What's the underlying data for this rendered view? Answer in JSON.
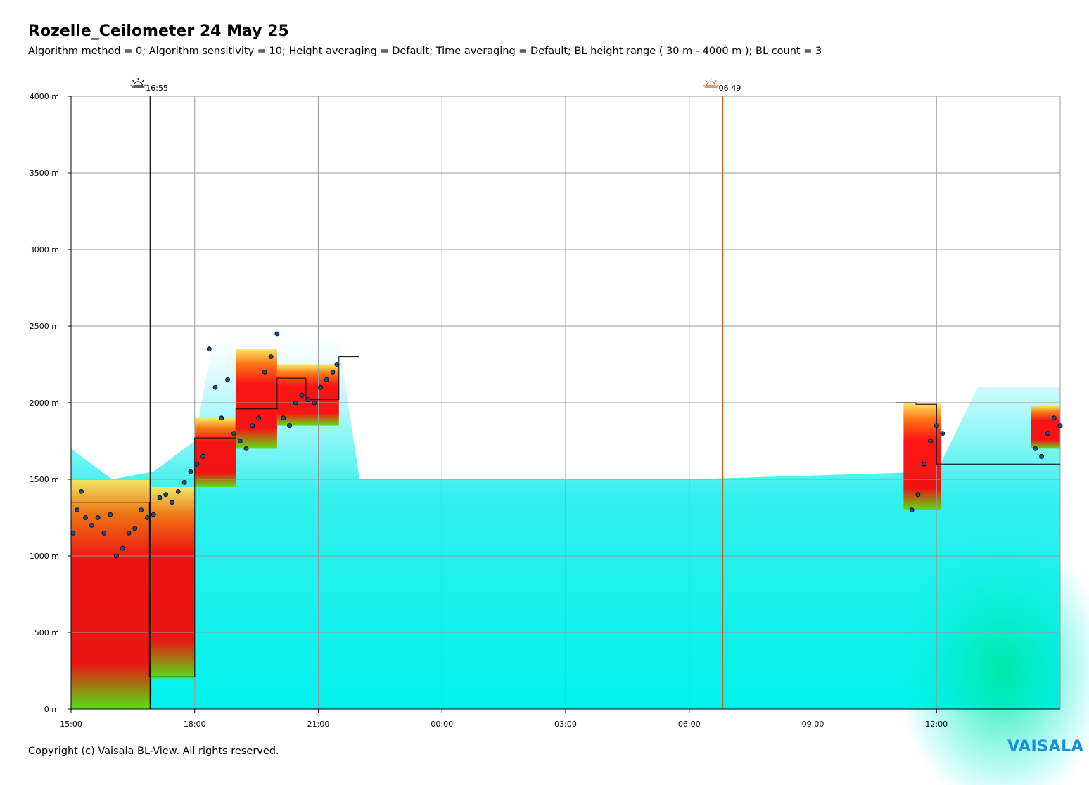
{
  "header": {
    "title": "Rozelle_Ceilometer 24 May 25",
    "subtitle": "Algorithm method = 0; Algorithm sensitivity = 10; Height averaging = Default; Time averaging = Default; BL height range ( 30 m - 4000 m ); BL count = 3"
  },
  "footer": {
    "copyright": "Copyright (c) Vaisala BL-View. All rights reserved.",
    "brand": "VAISALA"
  },
  "chart_data": {
    "type": "heatmap",
    "title": "Rozelle_Ceilometer 24 May 25",
    "xlabel": "",
    "ylabel": "",
    "x_ticks": [
      "15:00",
      "18:00",
      "21:00",
      "00:00",
      "03:00",
      "06:00",
      "09:00",
      "12:00"
    ],
    "x_range_hours": [
      15,
      39
    ],
    "y_ticks": [
      "0 m",
      "500 m",
      "1000 m",
      "1500 m",
      "2000 m",
      "2500 m",
      "3000 m",
      "3500 m",
      "4000 m"
    ],
    "ylim": [
      0,
      4000
    ],
    "grid": true,
    "markers": [
      {
        "label": "16:55",
        "kind": "sunset",
        "time_hours": 16.917,
        "color": "#000000"
      },
      {
        "label": "06:49",
        "kind": "sunrise",
        "time_hours": 30.817,
        "color": "#c8641e"
      }
    ],
    "colors": {
      "backscatter_low": "#00ffff",
      "backscatter_mid": "#00e6a0",
      "backscatter_high": "#ff0000",
      "bl_point": "#1a4f8a",
      "sunrise": "#c8641e"
    },
    "backscatter_region_tops": [
      {
        "t": 15.0,
        "h": 1700
      },
      {
        "t": 16.0,
        "h": 1500
      },
      {
        "t": 17.0,
        "h": 1550
      },
      {
        "t": 18.0,
        "h": 1750
      },
      {
        "t": 18.5,
        "h": 2500
      },
      {
        "t": 19.5,
        "h": 2550
      },
      {
        "t": 20.5,
        "h": 2450
      },
      {
        "t": 21.5,
        "h": 2400
      },
      {
        "t": 22.0,
        "h": 1500
      },
      {
        "t": 30.0,
        "h": 1500
      },
      {
        "t": 36.0,
        "h": 1550
      },
      {
        "t": 37.0,
        "h": 2100
      },
      {
        "t": 39.0,
        "h": 2100
      }
    ],
    "bl_height_steps": [
      {
        "t0": 15.0,
        "t1": 16.9,
        "h": 1350
      },
      {
        "t0": 16.9,
        "t1": 18.0,
        "h": 210
      },
      {
        "t0": 18.0,
        "t1": 19.0,
        "h": 1770
      },
      {
        "t0": 19.0,
        "t1": 20.0,
        "h": 1960
      },
      {
        "t0": 20.0,
        "t1": 20.7,
        "h": 2160
      },
      {
        "t0": 20.7,
        "t1": 21.5,
        "h": 2020
      },
      {
        "t0": 21.5,
        "t1": 22.0,
        "h": 2300
      },
      {
        "t0": 35.0,
        "t1": 35.5,
        "h": 2000
      },
      {
        "t0": 35.5,
        "t1": 36.0,
        "h": 1990
      },
      {
        "t0": 36.0,
        "t1": 39.0,
        "h": 1600
      }
    ],
    "bl_points": [
      {
        "t": 15.05,
        "h": 1150
      },
      {
        "t": 15.15,
        "h": 1300
      },
      {
        "t": 15.25,
        "h": 1420
      },
      {
        "t": 15.35,
        "h": 1250
      },
      {
        "t": 15.5,
        "h": 1200
      },
      {
        "t": 15.65,
        "h": 1250
      },
      {
        "t": 15.8,
        "h": 1150
      },
      {
        "t": 15.95,
        "h": 1270
      },
      {
        "t": 16.1,
        "h": 1000
      },
      {
        "t": 16.25,
        "h": 1050
      },
      {
        "t": 16.4,
        "h": 1150
      },
      {
        "t": 16.55,
        "h": 1180
      },
      {
        "t": 16.7,
        "h": 1300
      },
      {
        "t": 16.85,
        "h": 1250
      },
      {
        "t": 17.0,
        "h": 1270
      },
      {
        "t": 17.15,
        "h": 1380
      },
      {
        "t": 17.3,
        "h": 1400
      },
      {
        "t": 17.45,
        "h": 1350
      },
      {
        "t": 17.6,
        "h": 1420
      },
      {
        "t": 17.75,
        "h": 1480
      },
      {
        "t": 17.9,
        "h": 1550
      },
      {
        "t": 18.05,
        "h": 1600
      },
      {
        "t": 18.2,
        "h": 1650
      },
      {
        "t": 18.35,
        "h": 2350
      },
      {
        "t": 18.5,
        "h": 2100
      },
      {
        "t": 18.65,
        "h": 1900
      },
      {
        "t": 18.8,
        "h": 2150
      },
      {
        "t": 18.95,
        "h": 1800
      },
      {
        "t": 19.1,
        "h": 1750
      },
      {
        "t": 19.25,
        "h": 1700
      },
      {
        "t": 19.4,
        "h": 1850
      },
      {
        "t": 19.55,
        "h": 1900
      },
      {
        "t": 19.7,
        "h": 2200
      },
      {
        "t": 19.85,
        "h": 2300
      },
      {
        "t": 20.0,
        "h": 2450
      },
      {
        "t": 20.15,
        "h": 1900
      },
      {
        "t": 20.3,
        "h": 1850
      },
      {
        "t": 20.45,
        "h": 2000
      },
      {
        "t": 20.6,
        "h": 2050
      },
      {
        "t": 20.75,
        "h": 2020
      },
      {
        "t": 20.9,
        "h": 2000
      },
      {
        "t": 21.05,
        "h": 2100
      },
      {
        "t": 21.2,
        "h": 2150
      },
      {
        "t": 21.35,
        "h": 2200
      },
      {
        "t": 21.45,
        "h": 2250
      },
      {
        "t": 35.4,
        "h": 1300
      },
      {
        "t": 35.55,
        "h": 1400
      },
      {
        "t": 35.7,
        "h": 1600
      },
      {
        "t": 35.85,
        "h": 1750
      },
      {
        "t": 36.0,
        "h": 1850
      },
      {
        "t": 36.15,
        "h": 1800
      },
      {
        "t": 38.4,
        "h": 1700
      },
      {
        "t": 38.55,
        "h": 1650
      },
      {
        "t": 38.7,
        "h": 1800
      },
      {
        "t": 38.85,
        "h": 1900
      },
      {
        "t": 39.0,
        "h": 1850
      }
    ]
  }
}
